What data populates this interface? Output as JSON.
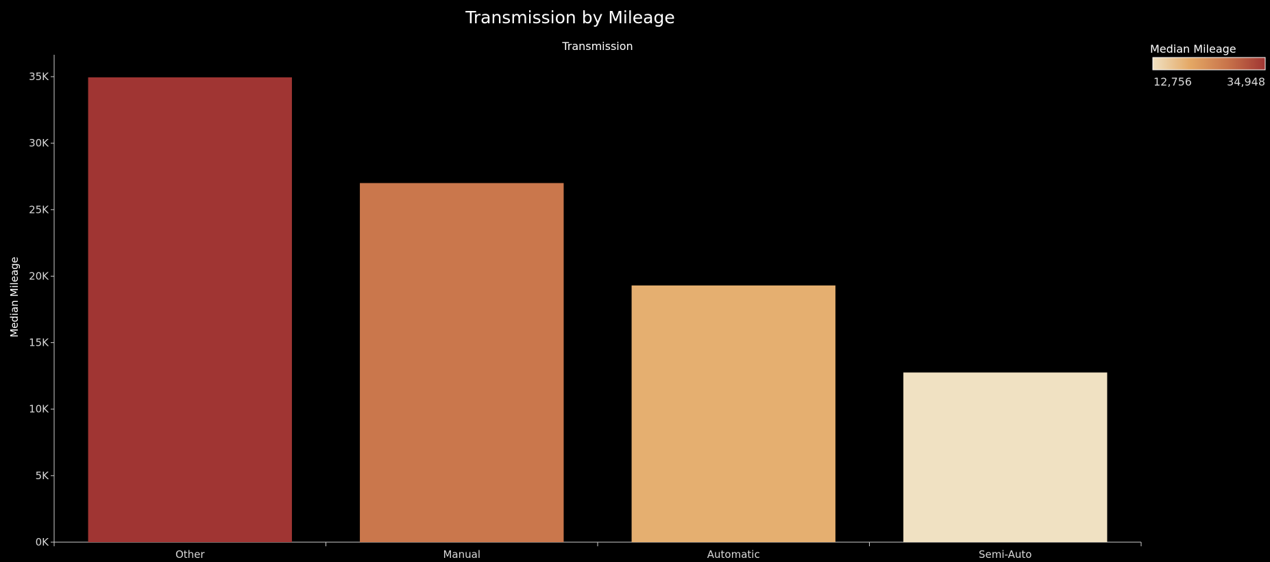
{
  "chart_data": {
    "type": "bar",
    "title": "Transmission by Mileage",
    "column_header": "Transmission",
    "xlabel": "",
    "ylabel": "Median Mileage",
    "categories": [
      "Other",
      "Manual",
      "Automatic",
      "Semi-Auto"
    ],
    "values": [
      34948,
      27000,
      19300,
      12756
    ],
    "ylim": [
      0,
      35000
    ],
    "yticks": [
      0,
      5000,
      10000,
      15000,
      20000,
      25000,
      30000,
      35000
    ],
    "ytick_labels": [
      "0K",
      "5K",
      "10K",
      "15K",
      "20K",
      "25K",
      "30K",
      "35K"
    ],
    "grid": false,
    "background": "#000000",
    "color_scale": {
      "title": "Median Mileage",
      "min_label": "12,756",
      "max_label": "34,948",
      "min": 12756,
      "max": 34948,
      "colors": [
        "#f0e1c2",
        "#e4a865",
        "#c8734a",
        "#a03533"
      ]
    },
    "legend_position": "top-right"
  }
}
